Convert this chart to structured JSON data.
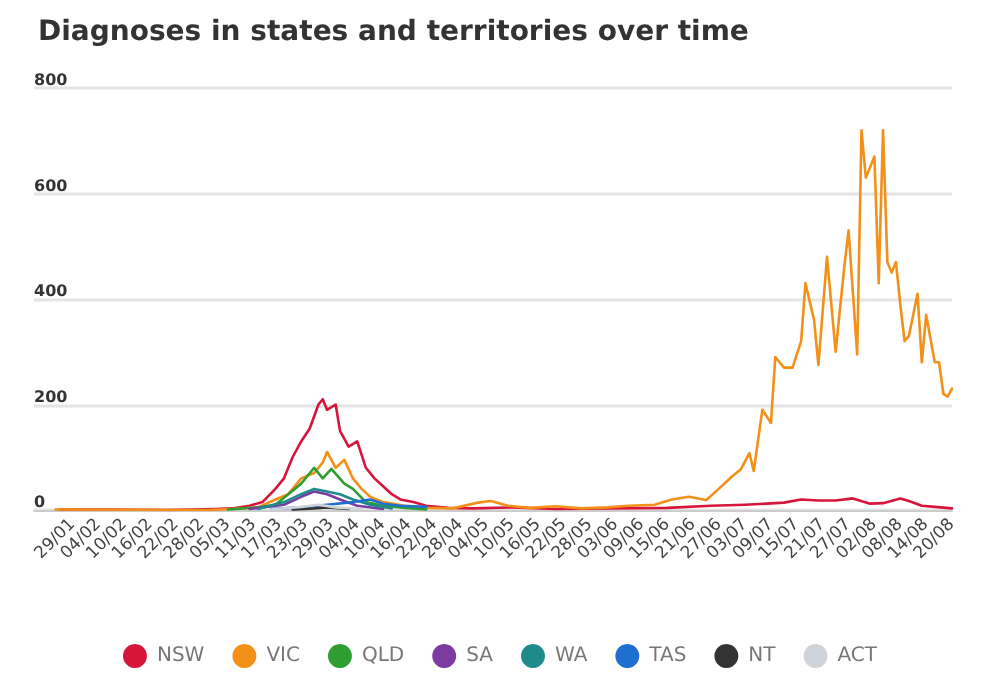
{
  "chart_data": {
    "type": "line",
    "title": "Diagnoses in states and territories over time",
    "xlim": [
      "--01-20",
      "--08-20"
    ],
    "xticks": [
      {
        "value": "--01-29",
        "label": "29/01"
      },
      {
        "value": "--02-04",
        "label": "04/02"
      },
      {
        "value": "--02-10",
        "label": "10/02"
      },
      {
        "value": "--02-16",
        "label": "16/02"
      },
      {
        "value": "--02-22",
        "label": "22/02"
      },
      {
        "value": "--02-28",
        "label": "28/02"
      },
      {
        "value": "--03-05",
        "label": "05/03"
      },
      {
        "value": "--03-11",
        "label": "11/03"
      },
      {
        "value": "--03-17",
        "label": "17/03"
      },
      {
        "value": "--03-23",
        "label": "23/03"
      },
      {
        "value": "--03-29",
        "label": "29/03"
      },
      {
        "value": "--04-04",
        "label": "04/04"
      },
      {
        "value": "--04-10",
        "label": "10/04"
      },
      {
        "value": "--04-16",
        "label": "16/04"
      },
      {
        "value": "--04-22",
        "label": "22/04"
      },
      {
        "value": "--04-28",
        "label": "28/04"
      },
      {
        "value": "--05-04",
        "label": "04/05"
      },
      {
        "value": "--05-10",
        "label": "10/05"
      },
      {
        "value": "--05-16",
        "label": "16/05"
      },
      {
        "value": "--05-22",
        "label": "22/05"
      },
      {
        "value": "--05-28",
        "label": "28/05"
      },
      {
        "value": "--06-03",
        "label": "03/06"
      },
      {
        "value": "--06-09",
        "label": "09/06"
      },
      {
        "value": "--06-15",
        "label": "15/06"
      },
      {
        "value": "--06-21",
        "label": "21/06"
      },
      {
        "value": "--06-27",
        "label": "27/06"
      },
      {
        "value": "--07-03",
        "label": "03/07"
      },
      {
        "value": "--07-09",
        "label": "09/07"
      },
      {
        "value": "--07-15",
        "label": "15/07"
      },
      {
        "value": "--07-21",
        "label": "21/07"
      },
      {
        "value": "--07-27",
        "label": "27/07"
      },
      {
        "value": "--08-02",
        "label": "02/08"
      },
      {
        "value": "--08-08",
        "label": "08/08"
      },
      {
        "value": "--08-14",
        "label": "14/08"
      },
      {
        "value": "--08-20",
        "label": "20/08"
      }
    ],
    "ylim": [
      0,
      800
    ],
    "yticks": [
      0,
      200,
      400,
      600,
      800
    ],
    "grid": "y",
    "legend": "bottom",
    "marker": "none",
    "line_style": "solid",
    "series": [
      {
        "name": "NSW",
        "color": "#d7153a",
        "x": [
          "--01-26",
          "--02-05",
          "--02-20",
          "--03-02",
          "--03-06",
          "--03-10",
          "--03-13",
          "--03-16",
          "--03-18",
          "--03-20",
          "--03-22",
          "--03-24",
          "--03-26",
          "--03-27",
          "--03-28",
          "--03-30",
          "--03-31",
          "--04-02",
          "--04-04",
          "--04-06",
          "--04-08",
          "--04-10",
          "--04-12",
          "--04-14",
          "--04-17",
          "--04-20",
          "--04-25",
          "--05-01",
          "--05-10",
          "--05-20",
          "--06-01",
          "--06-15",
          "--06-25",
          "--07-03",
          "--07-08",
          "--07-12",
          "--07-16",
          "--07-20",
          "--07-24",
          "--07-28",
          "--08-01",
          "--08-04",
          "--08-08",
          "--08-10",
          "--08-13",
          "--08-16",
          "--08-20"
        ],
        "values": [
          1,
          1,
          0,
          2,
          3,
          8,
          15,
          40,
          60,
          100,
          130,
          155,
          200,
          210,
          190,
          200,
          150,
          120,
          130,
          80,
          60,
          45,
          30,
          20,
          15,
          8,
          4,
          3,
          5,
          2,
          3,
          4,
          8,
          10,
          12,
          14,
          20,
          18,
          18,
          22,
          12,
          13,
          22,
          17,
          8,
          6,
          3
        ]
      },
      {
        "name": "VIC",
        "color": "#f39019",
        "x": [
          "--01-25",
          "--02-29",
          "--03-06",
          "--03-12",
          "--03-16",
          "--03-19",
          "--03-22",
          "--03-25",
          "--03-27",
          "--03-28",
          "--03-30",
          "--04-01",
          "--04-03",
          "--04-05",
          "--04-07",
          "--04-10",
          "--04-15",
          "--04-20",
          "--04-26",
          "--05-02",
          "--05-05",
          "--05-09",
          "--05-14",
          "--05-20",
          "--05-26",
          "--06-01",
          "--06-06",
          "--06-12",
          "--06-16",
          "--06-20",
          "--06-24",
          "--06-27",
          "--06-30",
          "--07-02",
          "--07-04",
          "--07-05",
          "--07-07",
          "--07-09",
          "--07-10",
          "--07-12",
          "--07-14",
          "--07-16",
          "--07-17",
          "--07-19",
          "--07-20",
          "--07-22",
          "--07-24",
          "--07-26",
          "--07-27",
          "--07-29",
          "--07-30",
          "--07-31",
          "--08-02",
          "--08-03",
          "--08-04",
          "--08-05",
          "--08-06",
          "--08-07",
          "--08-08",
          "--08-09",
          "--08-10",
          "--08-12",
          "--08-13",
          "--08-14",
          "--08-16",
          "--08-17",
          "--08-18",
          "--08-19",
          "--08-20"
        ],
        "values": [
          1,
          0,
          2,
          5,
          20,
          30,
          60,
          70,
          90,
          110,
          80,
          95,
          60,
          40,
          25,
          15,
          8,
          4,
          3,
          14,
          17,
          8,
          4,
          7,
          3,
          5,
          8,
          10,
          20,
          25,
          19,
          41,
          64,
          77,
          108,
          74,
          190,
          165,
          290,
          270,
          270,
          320,
          430,
          360,
          275,
          480,
          300,
          460,
          530,
          295,
          720,
          630,
          670,
          430,
          720,
          470,
          450,
          470,
          390,
          320,
          330,
          410,
          280,
          370,
          280,
          280,
          220,
          215,
          230
        ]
      },
      {
        "name": "QLD",
        "color": "#2f9e31",
        "x": [
          "--03-05",
          "--03-12",
          "--03-16",
          "--03-19",
          "--03-22",
          "--03-25",
          "--03-27",
          "--03-29",
          "--04-01",
          "--04-03",
          "--04-06",
          "--04-10",
          "--04-15",
          "--04-20"
        ],
        "values": [
          1,
          5,
          10,
          30,
          50,
          80,
          60,
          78,
          50,
          40,
          15,
          8,
          4,
          1
        ]
      },
      {
        "name": "SA",
        "color": "#7a3ba3",
        "x": [
          "--03-10",
          "--03-18",
          "--03-22",
          "--03-25",
          "--03-28",
          "--03-31",
          "--04-04",
          "--04-10"
        ],
        "values": [
          2,
          10,
          25,
          35,
          30,
          20,
          8,
          2
        ]
      },
      {
        "name": "WA",
        "color": "#1f8a8a",
        "x": [
          "--03-12",
          "--03-18",
          "--03-22",
          "--03-25",
          "--03-28",
          "--03-31",
          "--04-03",
          "--04-07",
          "--04-12"
        ],
        "values": [
          2,
          15,
          30,
          40,
          35,
          30,
          20,
          10,
          3
        ]
      },
      {
        "name": "TAS",
        "color": "#1e6fd1",
        "x": [
          "--03-15",
          "--03-22",
          "--03-28",
          "--04-03",
          "--04-07",
          "--04-10",
          "--04-14",
          "--04-20"
        ],
        "values": [
          2,
          5,
          10,
          15,
          20,
          12,
          8,
          6
        ]
      },
      {
        "name": "NT",
        "color": "#333333",
        "x": [
          "--03-20",
          "--03-25",
          "--03-28",
          "--04-02"
        ],
        "values": [
          1,
          3,
          5,
          2
        ]
      },
      {
        "name": "ACT",
        "color": "#ced4da",
        "x": [
          "--03-15",
          "--03-22",
          "--03-26",
          "--03-30",
          "--04-05"
        ],
        "values": [
          1,
          6,
          10,
          5,
          2
        ]
      }
    ]
  }
}
